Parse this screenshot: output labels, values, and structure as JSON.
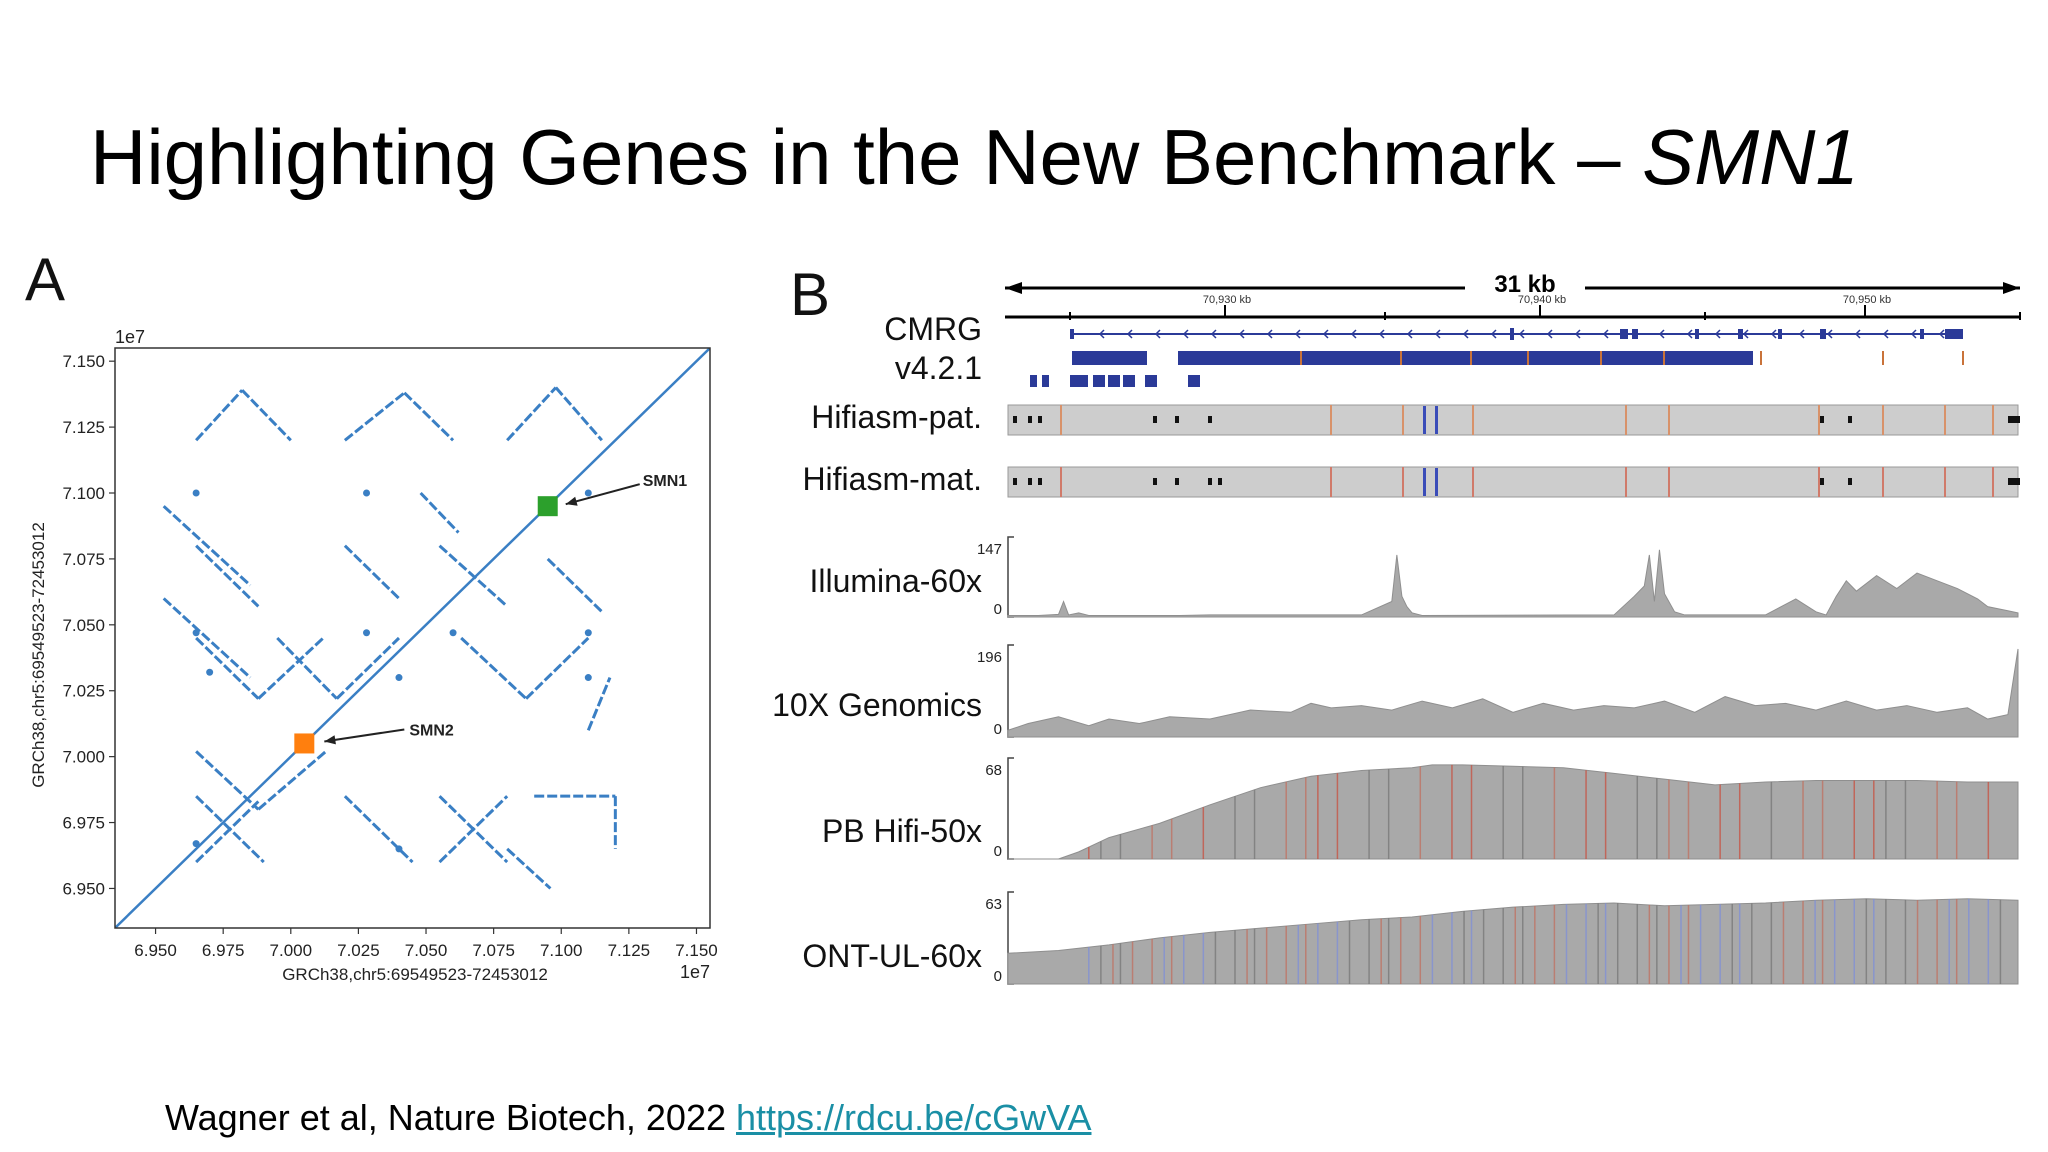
{
  "slide": {
    "title_main": "Highlighting Genes in the New Benchmark – ",
    "title_gene": "SMN1",
    "citation_text": "Wagner et al, Nature Biotech, 2022 ",
    "citation_link": "https://rdcu.be/cGwVA"
  },
  "panel_a": {
    "label": "A",
    "exponent": "1e7",
    "ylabel": "GRCh38,chr5:69549523-72453012",
    "xlabel": "GRCh38,chr5:69549523-72453012",
    "annotations": [
      {
        "name": "smn1",
        "text": "SMN1",
        "color": "#2ca02c",
        "pos": 7.095
      },
      {
        "name": "smn2",
        "text": "SMN2",
        "color": "#ff7f0e",
        "pos": 7.005
      }
    ]
  },
  "panel_b": {
    "label": "B",
    "scale_label": "31 kb",
    "coord_ticks": [
      "70,930 kb",
      "70,940 kb",
      "70,950 kb"
    ],
    "tracks": [
      {
        "name": "cmrg",
        "label1": "CMRG",
        "label2": "v4.2.1"
      },
      {
        "name": "hifiasm-pat",
        "label": "Hifiasm-pat."
      },
      {
        "name": "hifiasm-mat",
        "label": "Hifiasm-mat."
      },
      {
        "name": "illumina",
        "label": "Illumina-60x",
        "max": "147",
        "min": "0"
      },
      {
        "name": "10x",
        "label": "10X Genomics",
        "max": "196",
        "min": "0"
      },
      {
        "name": "pbhifi",
        "label": "PB Hifi-50x",
        "max": "68",
        "min": "0"
      },
      {
        "name": "ont",
        "label": "ONT-UL-60x",
        "max": "63",
        "min": "0"
      }
    ]
  },
  "chart_data": [
    {
      "type": "scatter",
      "title": "",
      "xlabel": "GRCh38,chr5:69549523-72453012",
      "ylabel": "GRCh38,chr5:69549523-72453012",
      "xlim": [
        6.935,
        7.155
      ],
      "ylim": [
        6.935,
        7.155
      ],
      "scale_multiplier": "1e7",
      "xticks": [
        "6.950",
        "6.975",
        "7.000",
        "7.025",
        "7.050",
        "7.075",
        "7.100",
        "7.125",
        "7.150"
      ],
      "yticks": [
        "6.950",
        "6.975",
        "7.000",
        "7.025",
        "7.050",
        "7.075",
        "7.100",
        "7.125",
        "7.150"
      ],
      "series": [
        {
          "color": "#3a7fc4",
          "segments": [
            [
              [
                6.935,
                6.935
              ],
              [
                7.155,
                7.155
              ]
            ],
            [
              [
                6.965,
                7.045
              ],
              [
                6.988,
                7.022
              ]
            ],
            [
              [
                6.988,
                7.022
              ],
              [
                7.012,
                7.045
              ]
            ],
            [
              [
                6.995,
                7.045
              ],
              [
                7.017,
                7.022
              ]
            ],
            [
              [
                7.017,
                7.022
              ],
              [
                7.04,
                7.045
              ]
            ],
            [
              [
                7.063,
                7.045
              ],
              [
                7.087,
                7.022
              ]
            ],
            [
              [
                7.087,
                7.022
              ],
              [
                7.11,
                7.045
              ]
            ],
            [
              [
                6.965,
                7.002
              ],
              [
                6.988,
                6.98
              ]
            ],
            [
              [
                6.988,
                6.98
              ],
              [
                7.013,
                7.002
              ]
            ],
            [
              [
                6.965,
                6.985
              ],
              [
                6.99,
                6.96
              ]
            ],
            [
              [
                6.965,
                6.96
              ],
              [
                6.988,
                6.983
              ]
            ],
            [
              [
                7.02,
                6.985
              ],
              [
                7.045,
                6.96
              ]
            ],
            [
              [
                7.055,
                6.985
              ],
              [
                7.08,
                6.96
              ]
            ],
            [
              [
                7.055,
                6.96
              ],
              [
                7.08,
                6.985
              ]
            ],
            [
              [
                7.09,
                6.985
              ],
              [
                7.12,
                6.985
              ]
            ],
            [
              [
                7.12,
                6.985
              ],
              [
                7.12,
                6.965
              ]
            ],
            [
              [
                7.08,
                6.965
              ],
              [
                7.096,
                6.95
              ]
            ],
            [
              [
                6.965,
                7.08
              ],
              [
                6.988,
                7.057
              ]
            ],
            [
              [
                7.02,
                7.08
              ],
              [
                7.04,
                7.06
              ]
            ],
            [
              [
                7.055,
                7.08
              ],
              [
                7.08,
                7.057
              ]
            ],
            [
              [
                7.095,
                7.075
              ],
              [
                7.115,
                7.055
              ]
            ],
            [
              [
                6.965,
                7.12
              ],
              [
                6.982,
                7.139
              ]
            ],
            [
              [
                6.982,
                7.139
              ],
              [
                7.0,
                7.12
              ]
            ],
            [
              [
                7.02,
                7.12
              ],
              [
                7.042,
                7.138
              ]
            ],
            [
              [
                7.042,
                7.138
              ],
              [
                7.06,
                7.12
              ]
            ],
            [
              [
                7.08,
                7.12
              ],
              [
                7.098,
                7.14
              ]
            ],
            [
              [
                7.098,
                7.14
              ],
              [
                7.115,
                7.12
              ]
            ],
            [
              [
                6.953,
                7.06
              ],
              [
                6.985,
                7.03
              ]
            ],
            [
              [
                6.953,
                7.095
              ],
              [
                6.985,
                7.065
              ]
            ],
            [
              [
                7.048,
                7.1
              ],
              [
                7.062,
                7.085
              ]
            ],
            [
              [
                7.11,
                7.01
              ],
              [
                7.118,
                7.03
              ]
            ]
          ],
          "dots": [
            [
              6.965,
              7.047
            ],
            [
              7.028,
              7.047
            ],
            [
              7.06,
              7.047
            ],
            [
              7.11,
              7.047
            ],
            [
              6.965,
              7.1
            ],
            [
              7.028,
              7.1
            ],
            [
              7.11,
              7.1
            ],
            [
              7.04,
              6.965
            ],
            [
              7.04,
              7.03
            ],
            [
              6.97,
              7.032
            ],
            [
              7.11,
              7.03
            ],
            [
              6.965,
              6.967
            ]
          ]
        }
      ],
      "highlights": [
        {
          "label": "SMN1",
          "x": 7.095,
          "y": 7.095,
          "color": "#2ca02c"
        },
        {
          "label": "SMN2",
          "x": 7.005,
          "y": 7.005,
          "color": "#ff7f0e"
        }
      ]
    },
    {
      "type": "area",
      "title": "Illumina-60x",
      "ylim": [
        0,
        147
      ],
      "x": [
        0.0,
        0.03,
        0.05,
        0.055,
        0.06,
        0.07,
        0.08,
        0.17,
        0.2,
        0.35,
        0.38,
        0.385,
        0.39,
        0.395,
        0.4,
        0.41,
        0.6,
        0.62,
        0.63,
        0.635,
        0.64,
        0.645,
        0.65,
        0.66,
        0.67,
        0.75,
        0.78,
        0.8,
        0.81,
        0.82,
        0.83,
        0.84,
        0.86,
        0.88,
        0.9,
        0.92,
        0.94,
        0.96,
        0.97,
        0.99,
        1.0
      ],
      "series": [
        {
          "values": [
            3,
            3,
            5,
            30,
            4,
            8,
            3,
            3,
            4,
            4,
            30,
            120,
            40,
            20,
            8,
            3,
            4,
            40,
            60,
            120,
            30,
            130,
            45,
            10,
            4,
            4,
            35,
            10,
            4,
            40,
            70,
            50,
            80,
            55,
            85,
            70,
            55,
            35,
            20,
            12,
            8
          ]
        }
      ]
    },
    {
      "type": "area",
      "title": "10X Genomics",
      "ylim": [
        0,
        196
      ],
      "x": [
        0.0,
        0.02,
        0.05,
        0.08,
        0.1,
        0.13,
        0.16,
        0.2,
        0.24,
        0.28,
        0.3,
        0.32,
        0.35,
        0.38,
        0.41,
        0.44,
        0.47,
        0.5,
        0.53,
        0.56,
        0.59,
        0.62,
        0.65,
        0.68,
        0.71,
        0.74,
        0.77,
        0.8,
        0.83,
        0.86,
        0.89,
        0.92,
        0.95,
        0.97,
        0.99,
        1.0
      ],
      "series": [
        {
          "values": [
            15,
            30,
            45,
            25,
            40,
            30,
            45,
            40,
            60,
            55,
            75,
            65,
            70,
            60,
            80,
            65,
            85,
            55,
            75,
            60,
            70,
            65,
            80,
            55,
            90,
            70,
            75,
            60,
            80,
            60,
            70,
            55,
            65,
            40,
            50,
            200
          ]
        }
      ]
    },
    {
      "type": "area",
      "title": "PB Hifi-50x",
      "ylim": [
        0,
        68
      ],
      "x": [
        0.0,
        0.05,
        0.07,
        0.1,
        0.15,
        0.2,
        0.25,
        0.3,
        0.35,
        0.4,
        0.42,
        0.45,
        0.5,
        0.55,
        0.6,
        0.65,
        0.7,
        0.75,
        0.8,
        0.85,
        0.9,
        0.95,
        1.0
      ],
      "series": [
        {
          "values": [
            0,
            0,
            5,
            15,
            25,
            38,
            50,
            58,
            62,
            64,
            66,
            66,
            65,
            64,
            60,
            56,
            52,
            54,
            55,
            55,
            55,
            54,
            54
          ]
        }
      ]
    },
    {
      "type": "area",
      "title": "ONT-UL-60x",
      "ylim": [
        0,
        63
      ],
      "x": [
        0.0,
        0.05,
        0.1,
        0.15,
        0.2,
        0.25,
        0.3,
        0.35,
        0.4,
        0.45,
        0.5,
        0.55,
        0.6,
        0.65,
        0.7,
        0.75,
        0.8,
        0.85,
        0.9,
        0.95,
        1.0
      ],
      "series": [
        {
          "values": [
            22,
            24,
            28,
            33,
            37,
            40,
            43,
            46,
            48,
            52,
            55,
            57,
            58,
            56,
            57,
            58,
            60,
            61,
            60,
            61,
            60
          ]
        }
      ]
    }
  ]
}
